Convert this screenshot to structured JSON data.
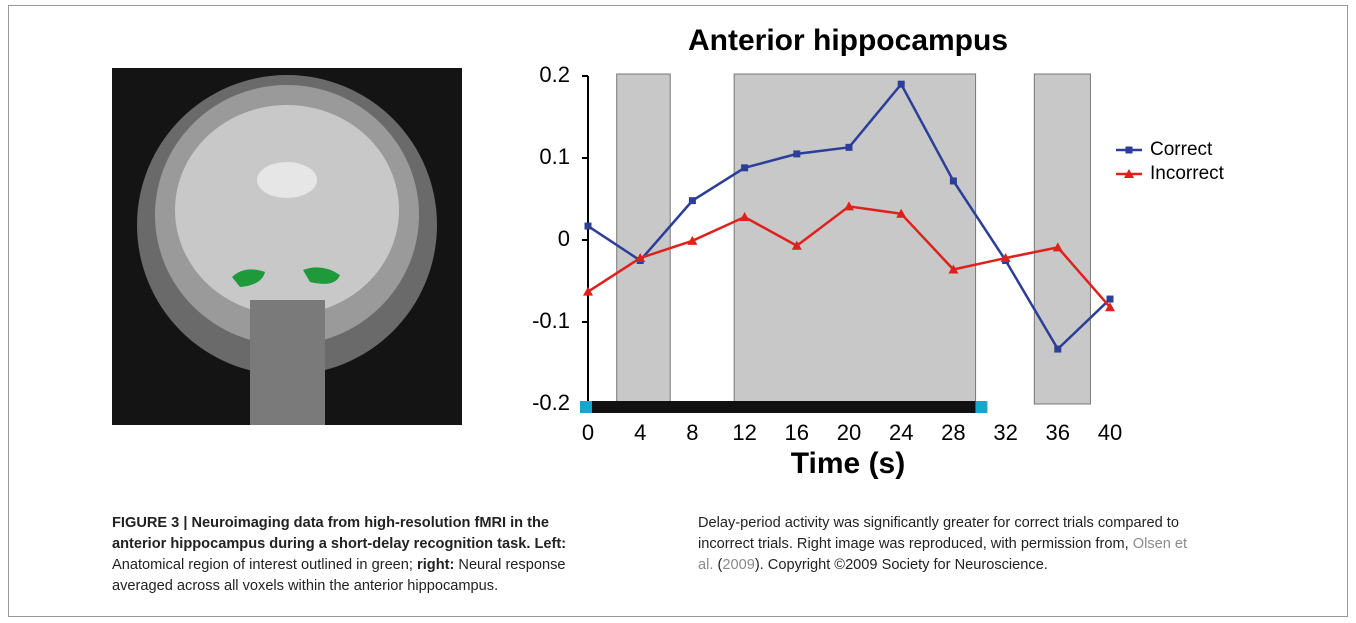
{
  "chart_data": {
    "type": "line",
    "title": "Anterior hippocampus",
    "x_label": "Time (s)",
    "x": [
      0,
      4,
      8,
      12,
      16,
      20,
      24,
      28,
      32,
      36,
      40
    ],
    "series": [
      {
        "name": "Correct",
        "color": "#2b3f99",
        "marker": "square",
        "values": [
          0.017,
          -0.025,
          0.048,
          0.088,
          0.105,
          0.113,
          0.19,
          0.072,
          -0.025,
          -0.133,
          -0.072
        ]
      },
      {
        "name": "Incorrect",
        "color": "#e0201c",
        "marker": "triangle",
        "values": [
          -0.063,
          -0.022,
          -0.001,
          0.028,
          -0.007,
          0.041,
          0.032,
          -0.036,
          -0.022,
          -0.009,
          -0.082
        ]
      }
    ],
    "shaded_intervals": [
      [
        2.2,
        6.3
      ],
      [
        11.2,
        29.7
      ],
      [
        34.2,
        38.5
      ]
    ],
    "task_period": [
      0,
      30.3
    ],
    "xlim": [
      0,
      40
    ],
    "xticks": [
      0,
      4,
      8,
      12,
      16,
      20,
      24,
      28,
      32,
      36,
      40
    ],
    "ylim": [
      -0.2,
      0.2
    ],
    "yticks": [
      0.2,
      0.1,
      0,
      -0.1,
      -0.2
    ],
    "legend": "right"
  },
  "caption": {
    "title": "FIGURE 3 | Neuroimaging data from high-resolution fMRI in the anterior hippocampus during a short-delay recognition task.",
    "left_label": "Left:",
    "left_text": "Anatomical region of interest outlined in green;",
    "right_label": "right:",
    "right_text": "Neural response averaged across all voxels within the anterior hippocampus.",
    "text_2": "Delay-period activity was significantly greater for correct trials compared to incorrect trials. Right image was reproduced, with permission from,",
    "ref_authors": "Olsen et al.",
    "ref_year": "2009",
    "text_3": "Copyright ©2009 Society for Neuroscience."
  }
}
